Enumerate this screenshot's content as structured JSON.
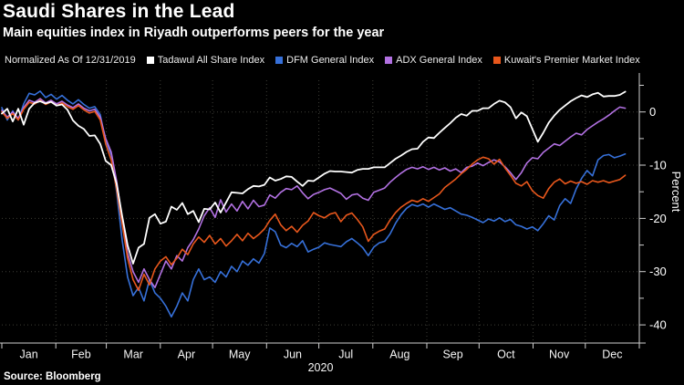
{
  "header": {
    "title": "Saudi Shares in the Lead",
    "subtitle": "Main equities index in Riyadh outperforms peers for the year"
  },
  "legend": {
    "note": "Normalized As Of 12/31/2019",
    "items": [
      {
        "label": "Tadawul All Share Index",
        "color": "#ffffff"
      },
      {
        "label": "DFM General Index",
        "color": "#3670d9"
      },
      {
        "label": "ADX General Index",
        "color": "#b271e2"
      },
      {
        "label": "Kuwait's Premier Market Index",
        "color": "#e8571c"
      }
    ]
  },
  "source": "Source: Bloomberg",
  "chart_data": {
    "type": "line",
    "title": "Saudi Shares in the Lead",
    "subtitle": "Main equities index in Riyadh outperforms peers for the year",
    "normalized_note": "Normalized As Of 12/31/2019",
    "x_axis": {
      "year_label": "2020",
      "tick_labels": [
        "Jan",
        "Feb",
        "Mar",
        "Apr",
        "May",
        "Jun",
        "Jul",
        "Aug",
        "Sep",
        "Oct",
        "Nov",
        "Dec"
      ],
      "month_boundary_days": [
        0,
        31,
        60,
        91,
        121,
        152,
        182,
        213,
        244,
        274,
        305,
        335,
        366
      ]
    },
    "y_axis": {
      "label": "Percent",
      "major_ticks": [
        0,
        -10,
        -20,
        -30,
        -40
      ],
      "minor_ticks": [
        5,
        -5,
        -15,
        -25,
        -35
      ],
      "ylim": [
        -43.5,
        6.8
      ],
      "grid": true,
      "side": "right"
    },
    "x_start_day": 0,
    "x_step_days": 3.14,
    "series": [
      {
        "name": "Tadawul All Share Index",
        "color": "#ffffff",
        "values": [
          -0.3,
          0.6,
          -1.8,
          0.6,
          -2.4,
          0.6,
          1.7,
          2.0,
          1.6,
          1.9,
          1.2,
          1.4,
          0.4,
          -1.6,
          -2.6,
          -3.2,
          -4.5,
          -4.4,
          -6.0,
          -9.2,
          -10.0,
          -13.5,
          -19.5,
          -25.0,
          -28.5,
          -25.5,
          -24.8,
          -19.9,
          -19.2,
          -21.0,
          -20.6,
          -17.8,
          -18.4,
          -17.1,
          -19.2,
          -18.6,
          -20.7,
          -18.2,
          -18.3,
          -17.0,
          -18.9,
          -17.0,
          -15.1,
          -15.2,
          -15.3,
          -14.5,
          -13.9,
          -14.0,
          -13.7,
          -12.3,
          -12.9,
          -12.6,
          -12.1,
          -12.2,
          -13.1,
          -13.9,
          -12.9,
          -13.0,
          -12.3,
          -11.6,
          -11.1,
          -11.2,
          -11.2,
          -11.3,
          -11.4,
          -10.9,
          -10.7,
          -10.7,
          -10.4,
          -10.4,
          -10.4,
          -9.6,
          -8.8,
          -8.2,
          -7.5,
          -7.0,
          -6.9,
          -5.6,
          -4.8,
          -4.9,
          -3.9,
          -3.0,
          -2.1,
          -1.1,
          -0.4,
          -0.7,
          0.2,
          0.2,
          0.7,
          0.7,
          1.5,
          2.1,
          1.8,
          0.9,
          -1.2,
          -0.1,
          -0.8,
          -3.2,
          -5.6,
          -3.9,
          -2.0,
          -0.7,
          0.4,
          1.2,
          2.0,
          2.6,
          3.1,
          2.8,
          3.3,
          3.6,
          2.9,
          3.0,
          3.0,
          3.2,
          3.8
        ]
      },
      {
        "name": "DFM General Index",
        "color": "#3670d9",
        "values": [
          0.8,
          -1.5,
          0.2,
          -1.5,
          1.5,
          3.5,
          3.2,
          3.9,
          2.7,
          3.3,
          2.4,
          3.1,
          2.2,
          1.5,
          2.3,
          1.4,
          0.7,
          1.0,
          -0.5,
          -5.5,
          -8.0,
          -15.0,
          -24.0,
          -31.0,
          -34.5,
          -33.0,
          -35.5,
          -31.5,
          -34.0,
          -35.0,
          -36.5,
          -38.5,
          -36.5,
          -34.0,
          -35.5,
          -31.5,
          -29.5,
          -31.5,
          -31.0,
          -32.0,
          -30.0,
          -31.0,
          -29.0,
          -30.0,
          -28.0,
          -28.8,
          -27.6,
          -28.4,
          -26.6,
          -21.8,
          -22.5,
          -25.0,
          -25.5,
          -24.7,
          -25.3,
          -24.2,
          -26.3,
          -25.8,
          -25.4,
          -24.6,
          -24.9,
          -25.1,
          -25.3,
          -24.4,
          -23.8,
          -24.6,
          -25.5,
          -27.0,
          -25.4,
          -24.6,
          -24.3,
          -22.9,
          -20.9,
          -19.3,
          -18.1,
          -17.4,
          -17.7,
          -17.3,
          -17.9,
          -17.3,
          -17.8,
          -18.3,
          -18.0,
          -18.6,
          -19.2,
          -19.4,
          -19.8,
          -20.3,
          -20.8,
          -20.1,
          -20.5,
          -19.9,
          -20.6,
          -20.2,
          -21.2,
          -21.5,
          -22.0,
          -21.6,
          -22.3,
          -21.0,
          -19.5,
          -20.3,
          -17.6,
          -16.3,
          -17.2,
          -14.5,
          -12.5,
          -11.0,
          -12.0,
          -9.0,
          -8.2,
          -8.0,
          -8.6,
          -8.3,
          -7.9
        ]
      },
      {
        "name": "ADX General Index",
        "color": "#b271e2",
        "values": [
          0.3,
          -1.0,
          0.0,
          -1.2,
          0.8,
          2.2,
          1.8,
          2.5,
          1.7,
          2.2,
          1.5,
          2.0,
          1.3,
          0.8,
          1.5,
          0.7,
          0.2,
          0.5,
          -1.0,
          -5.0,
          -7.5,
          -13.0,
          -20.0,
          -26.5,
          -30.0,
          -32.0,
          -29.5,
          -31.5,
          -33.0,
          -30.5,
          -28.0,
          -29.5,
          -27.0,
          -28.0,
          -25.5,
          -24.0,
          -22.0,
          -19.5,
          -18.0,
          -19.8,
          -16.5,
          -18.8,
          -17.3,
          -18.6,
          -16.8,
          -18.2,
          -16.6,
          -17.8,
          -17.5,
          -15.6,
          -16.2,
          -15.1,
          -14.4,
          -14.6,
          -13.9,
          -15.2,
          -16.3,
          -15.5,
          -15.1,
          -14.6,
          -14.3,
          -14.8,
          -15.3,
          -16.4,
          -15.6,
          -15.4,
          -16.2,
          -16.6,
          -15.1,
          -14.7,
          -14.3,
          -13.2,
          -12.3,
          -11.5,
          -10.8,
          -10.4,
          -10.7,
          -10.3,
          -10.8,
          -10.4,
          -10.9,
          -10.5,
          -11.1,
          -10.7,
          -11.4,
          -10.4,
          -10.2,
          -9.6,
          -10.1,
          -9.5,
          -9.0,
          -9.4,
          -10.3,
          -11.4,
          -12.7,
          -11.4,
          -9.6,
          -8.6,
          -8.8,
          -7.6,
          -6.8,
          -6.0,
          -6.3,
          -5.5,
          -4.7,
          -4.0,
          -4.3,
          -3.3,
          -2.6,
          -1.9,
          -1.3,
          -0.6,
          0.2,
          0.9,
          0.7
        ]
      },
      {
        "name": "Kuwait's Premier Market Index",
        "color": "#e8571c",
        "values": [
          0.0,
          -1.2,
          -0.3,
          -1.5,
          0.5,
          1.8,
          1.5,
          2.2,
          1.4,
          1.9,
          1.2,
          1.7,
          1.0,
          0.5,
          1.2,
          0.4,
          -0.2,
          0.1,
          -1.5,
          -6.0,
          -9.0,
          -14.5,
          -21.0,
          -27.5,
          -31.5,
          -33.5,
          -30.5,
          -32.5,
          -29.5,
          -28.0,
          -27.2,
          -28.7,
          -27.5,
          -25.8,
          -26.8,
          -24.8,
          -23.5,
          -24.5,
          -23.2,
          -24.8,
          -23.8,
          -25.2,
          -24.2,
          -23.0,
          -24.2,
          -22.8,
          -23.8,
          -23.0,
          -22.0,
          -20.4,
          -19.2,
          -21.2,
          -22.3,
          -21.5,
          -22.6,
          -21.3,
          -20.5,
          -18.9,
          -19.5,
          -19.9,
          -19.2,
          -18.9,
          -20.6,
          -19.4,
          -19.0,
          -20.2,
          -21.6,
          -24.3,
          -23.0,
          -22.4,
          -22.0,
          -20.3,
          -18.9,
          -17.9,
          -17.2,
          -16.6,
          -16.9,
          -16.3,
          -16.8,
          -16.1,
          -15.4,
          -14.2,
          -13.4,
          -12.6,
          -11.6,
          -10.8,
          -9.8,
          -9.0,
          -8.5,
          -8.8,
          -9.8,
          -8.9,
          -10.5,
          -11.9,
          -13.4,
          -13.9,
          -13.1,
          -14.8,
          -15.7,
          -16.2,
          -14.4,
          -13.2,
          -12.6,
          -13.5,
          -13.0,
          -13.4,
          -13.1,
          -13.6,
          -12.9,
          -13.2,
          -12.9,
          -13.3,
          -13.0,
          -12.7,
          -11.9
        ]
      }
    ]
  }
}
